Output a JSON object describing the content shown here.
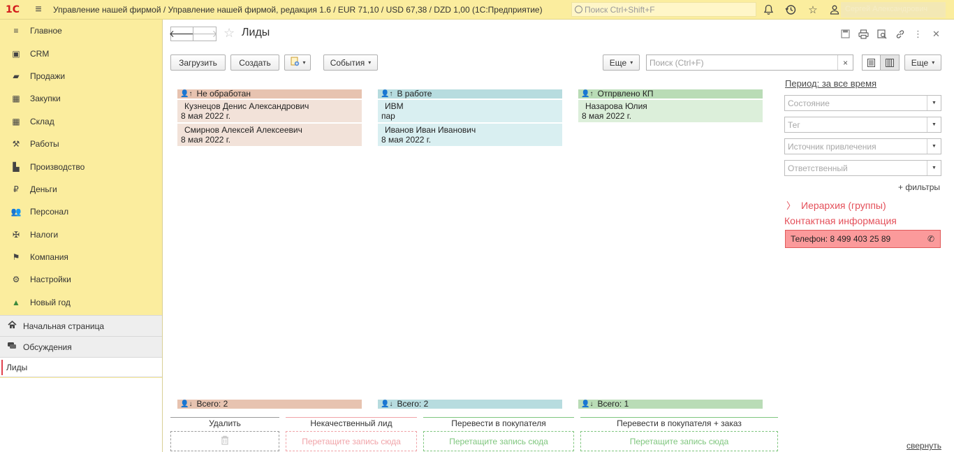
{
  "topbar": {
    "logo": "1С",
    "title": "Управление нашей фирмой / Управление нашей фирмой, редакция 1.6 / EUR 71,10 / USD 67,38 / DZD 1,00  (1С:Предприятие)",
    "search_placeholder": "Поиск Ctrl+Shift+F",
    "user": "Сергей Александрович"
  },
  "sidebar": {
    "items": [
      {
        "label": "Главное",
        "icon": "menu-lines-icon"
      },
      {
        "label": "CRM",
        "icon": "crm-icon"
      },
      {
        "label": "Продажи",
        "icon": "sales-bag-icon"
      },
      {
        "label": "Закупки",
        "icon": "purchases-cart-icon"
      },
      {
        "label": "Склад",
        "icon": "warehouse-grid-icon"
      },
      {
        "label": "Работы",
        "icon": "tools-icon"
      },
      {
        "label": "Производство",
        "icon": "factory-icon"
      },
      {
        "label": "Деньги",
        "icon": "money-coin-icon"
      },
      {
        "label": "Персонал",
        "icon": "people-icon"
      },
      {
        "label": "Налоги",
        "icon": "eagle-emblem-icon"
      },
      {
        "label": "Компания",
        "icon": "flag-icon"
      },
      {
        "label": "Настройки",
        "icon": "gear-icon"
      },
      {
        "label": "Новый год",
        "icon": "tree-icon"
      }
    ],
    "home": "Начальная страница",
    "discussions": "Обсуждения",
    "open_window": "Лиды"
  },
  "page": {
    "title": "Лиды"
  },
  "toolbar": {
    "load": "Загрузить",
    "create": "Создать",
    "events": "События",
    "more_left": "Еще",
    "search_placeholder": "Поиск (Ctrl+F)",
    "clear": "×",
    "more_right": "Еще"
  },
  "kanban": {
    "columns": [
      {
        "title": "Не обработан",
        "head_color": "#e7c3b0",
        "card_color": "#f2e2d9",
        "cards": [
          {
            "line1": "Кузнецов Денис Александрович",
            "line2": "8 мая 2022 г."
          },
          {
            "line1": "Смирнов Алексей Алексеевич",
            "line2": "8 мая 2022 г."
          }
        ],
        "total": "Всего: 2"
      },
      {
        "title": "В работе",
        "head_color": "#b7dcdf",
        "card_color": "#d9eff1",
        "cards": [
          {
            "line1": "ИВМ",
            "line2": "пар"
          },
          {
            "line1": "Иванов Иван Иванович",
            "line2": "8 мая 2022 г."
          }
        ],
        "total": "Всего: 2"
      },
      {
        "title": "Отпрвлено КП",
        "head_color": "#b9dcb6",
        "card_color": "#dcefda",
        "cards": [
          {
            "line1": "Назарова Юлия",
            "line2": "8 мая 2022 г."
          }
        ],
        "total": "Всего: 1"
      }
    ]
  },
  "dropzones": [
    {
      "label": "Удалить",
      "hint": "",
      "color": "#9a9a9a",
      "icon": "trash-icon"
    },
    {
      "label": "Некачественный лид",
      "hint": "Перетащите запись сюда",
      "color": "#f0a3a8"
    },
    {
      "label": "Перевести в покупателя",
      "hint": "Перетащите запись сюда",
      "color": "#7fc67e"
    },
    {
      "label": "Перевести в покупателя + заказ",
      "hint": "Перетащите запись сюда",
      "color": "#7fc67e"
    }
  ],
  "filters": {
    "period": "Период: за все время",
    "state": "Состояние",
    "tag": "Тег",
    "source": "Источник привлечения",
    "responsible": "Ответственный",
    "more_filters": "+ фильтры",
    "hierarchy": "Иерархия (группы)",
    "contact_title": "Контактная информация",
    "phone": "Телефон: 8 499 403 25 89",
    "collapse": "свернуть"
  }
}
